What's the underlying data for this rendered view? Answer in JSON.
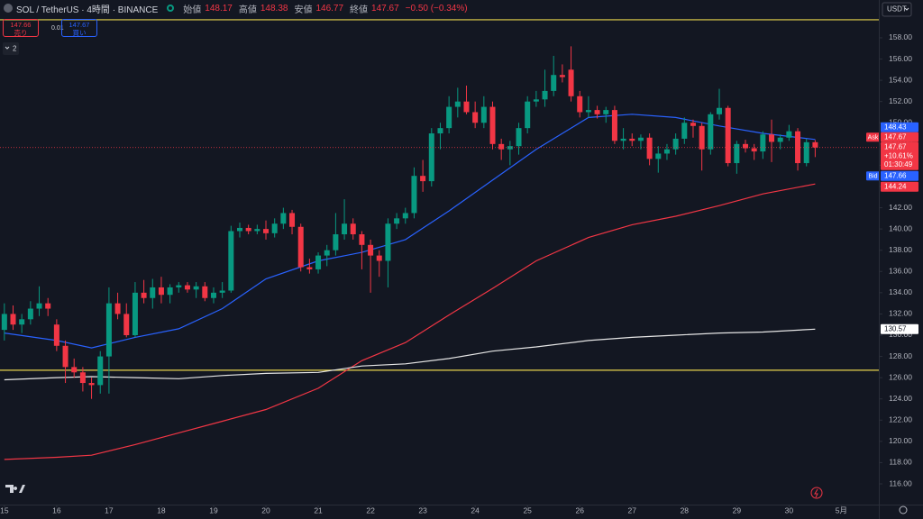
{
  "header": {
    "symbol": "SOL / TetherUS · 4時間 · BINANCE",
    "ohlc": [
      {
        "label": "始値",
        "value": 148.17
      },
      {
        "label": "高値",
        "value": 148.38
      },
      {
        "label": "安値",
        "value": 146.77
      },
      {
        "label": "終値",
        "value": 147.67
      }
    ],
    "change": "−0.50 (−0.34%)"
  },
  "trade": {
    "sell": {
      "price": 147.66,
      "label": "売り"
    },
    "spread": 0.01,
    "buy": {
      "price": 147.67,
      "label": "買い"
    }
  },
  "indicators_count": 2,
  "currency": "USDT",
  "chart_data": {
    "type": "candlestick",
    "open": [
      130.5,
      132,
      131,
      131.5,
      132.5,
      133,
      131,
      129,
      127,
      126.5,
      125.5,
      125.3,
      128,
      133,
      132,
      130,
      134,
      133.5,
      134.5,
      133.8,
      134.5,
      134.7,
      134.3,
      134.6,
      133.5,
      134,
      134.2,
      139.8,
      140.1,
      139.8,
      140,
      139.6,
      140.5,
      141.5,
      140.2,
      136.4,
      136.2,
      137.5,
      138,
      139.5,
      140.5,
      139.5,
      138.5,
      137.5,
      137,
      140.5,
      141,
      141.5,
      145,
      144.5,
      149,
      149.5,
      151.5,
      152,
      151,
      150,
      151.5,
      148,
      147.5,
      147.8,
      149.5,
      152,
      152.2,
      153,
      154.5,
      155,
      152.5,
      151,
      151.2,
      150.8,
      151.2,
      148.3,
      148.5,
      148.3,
      148.6,
      146.6,
      147.1,
      147.5,
      148.5,
      150,
      149.7,
      147.5,
      150.8,
      151.4,
      146.2,
      148,
      147.6,
      147.3,
      148.9,
      148.2,
      148.6,
      149.2,
      146.2,
      148.17
    ],
    "high": [
      133,
      132.8,
      132,
      133.2,
      134.6,
      133.5,
      131.5,
      129.5,
      127.8,
      127,
      126,
      128.5,
      134.5,
      134,
      133,
      135,
      135.2,
      135.3,
      135.5,
      134.8,
      135,
      135,
      135,
      135,
      134.5,
      135,
      140.3,
      140.6,
      140.4,
      140.4,
      140.8,
      141,
      142,
      141.8,
      140.5,
      137.2,
      137.8,
      138.5,
      141.5,
      142.8,
      141,
      139.8,
      139,
      138,
      141,
      141.5,
      142,
      145.8,
      146.5,
      149.5,
      150,
      152.5,
      153.3,
      153.5,
      152,
      152.5,
      152,
      148.5,
      148.3,
      150,
      152.5,
      153,
      155,
      156.3,
      155.5,
      157.2,
      153,
      152.5,
      151.6,
      151.5,
      151.6,
      149.5,
      149,
      148.9,
      149,
      147.8,
      148,
      149,
      150.5,
      150.3,
      150,
      151,
      153.2,
      151.6,
      148.3,
      148.4,
      148,
      149.2,
      150.3,
      148.9,
      149.8,
      149.5,
      148.5,
      148.38
    ],
    "low": [
      129.5,
      130.5,
      130.2,
      131,
      131.8,
      131.8,
      128.5,
      125.5,
      126,
      124.7,
      124,
      124.5,
      124.5,
      131.5,
      129.8,
      129.8,
      133,
      132.5,
      133,
      133,
      134,
      134,
      133.5,
      133.2,
      133,
      133.5,
      134,
      139.2,
      139.5,
      139.5,
      139,
      139.2,
      140,
      139.5,
      136,
      135.8,
      135.8,
      136.5,
      137.5,
      139,
      139,
      136.2,
      134,
      135.5,
      134.5,
      140,
      140.5,
      141,
      143.5,
      144,
      147.5,
      149,
      150.5,
      150.8,
      149.5,
      149.5,
      147.5,
      146.5,
      146,
      147,
      149,
      151.5,
      151.5,
      152.5,
      153.8,
      152,
      150.5,
      150.5,
      150.4,
      150,
      148,
      147.5,
      147.8,
      147.5,
      146,
      145.3,
      146.5,
      147,
      148,
      148.6,
      145.5,
      147,
      150.3,
      145.9,
      145.2,
      147.2,
      146.5,
      146.6,
      146.3,
      147.5,
      148.3,
      145.5,
      145.9,
      146.77
    ],
    "close": [
      132,
      131,
      131.5,
      132.5,
      133,
      132.5,
      129,
      127,
      126.5,
      125.5,
      125.3,
      128,
      133,
      132,
      130,
      134,
      133.5,
      134.5,
      133.8,
      134.5,
      134.7,
      134.3,
      134.6,
      133.5,
      134,
      134.2,
      139.8,
      140.1,
      139.8,
      140,
      139.6,
      140.5,
      141.5,
      140.2,
      136.4,
      136.2,
      137.5,
      138,
      139.5,
      140.5,
      139.5,
      138.5,
      137.5,
      137,
      140.5,
      141,
      141.5,
      145,
      144.5,
      149,
      149.5,
      151.5,
      152,
      151,
      150,
      151.5,
      148,
      147.5,
      147.8,
      149.5,
      152,
      152.2,
      153,
      154.5,
      154.3,
      152.5,
      151,
      151.2,
      150.8,
      151.2,
      148.3,
      148.5,
      148.3,
      148.6,
      146.6,
      147.1,
      147.5,
      148.5,
      150,
      149.7,
      147.5,
      150.8,
      151.4,
      146.2,
      148,
      147.6,
      147.3,
      148.9,
      148.2,
      148.6,
      149.2,
      146.2,
      148.17,
      147.67
    ],
    "up_color": "#089981",
    "down_color": "#f23645",
    "xlim": [
      -0.5,
      100.3
    ],
    "xticks": [
      {
        "value": 0,
        "label": "15"
      },
      {
        "value": 6,
        "label": "16"
      },
      {
        "value": 12,
        "label": "17"
      },
      {
        "value": 18,
        "label": "18"
      },
      {
        "value": 24,
        "label": "19"
      },
      {
        "value": 30,
        "label": "20"
      },
      {
        "value": 36,
        "label": "21"
      },
      {
        "value": 42,
        "label": "22"
      },
      {
        "value": 48,
        "label": "23"
      },
      {
        "value": 54,
        "label": "24"
      },
      {
        "value": 60,
        "label": "25"
      },
      {
        "value": 66,
        "label": "26"
      },
      {
        "value": 72,
        "label": "27"
      },
      {
        "value": 78,
        "label": "28"
      },
      {
        "value": 84,
        "label": "29"
      },
      {
        "value": 90,
        "label": "30"
      },
      {
        "value": 96,
        "label": "5月"
      }
    ],
    "ylim": [
      114.05,
      161.56
    ],
    "yticks": [
      {
        "value": 116,
        "label": "116.00"
      },
      {
        "value": 118,
        "label": "118.00"
      },
      {
        "value": 120,
        "label": "120.00"
      },
      {
        "value": 122,
        "label": "122.00"
      },
      {
        "value": 124,
        "label": "124.00"
      },
      {
        "value": 126,
        "label": "126.00"
      },
      {
        "value": 128,
        "label": "128.00"
      },
      {
        "value": 130,
        "label": "130.00"
      },
      {
        "value": 132,
        "label": "132.00"
      },
      {
        "value": 134,
        "label": "134.00"
      },
      {
        "value": 136,
        "label": "136.00"
      },
      {
        "value": 138,
        "label": "138.00"
      },
      {
        "value": 140,
        "label": "140.00"
      },
      {
        "value": 142,
        "label": "142.00"
      },
      {
        "value": 144,
        "label": "144.00"
      },
      {
        "value": 146,
        "label": "146.00"
      },
      {
        "value": 148,
        "label": "148.00"
      },
      {
        "value": 150,
        "label": "150.00"
      },
      {
        "value": 152,
        "label": "152.00"
      },
      {
        "value": 154,
        "label": "154.00"
      },
      {
        "value": 156,
        "label": "156.00"
      },
      {
        "value": 158,
        "label": "158.00"
      }
    ],
    "overlays": [
      {
        "color": "#2962ff",
        "x": [
          0,
          6,
          10,
          15,
          20,
          25,
          30,
          36,
          41,
          46,
          51,
          56,
          61,
          67,
          72,
          77,
          82,
          87,
          93
        ],
        "values": [
          130.2,
          129.5,
          128.8,
          129.8,
          130.6,
          132.5,
          135.3,
          137,
          137.8,
          139,
          141.7,
          144.6,
          147.5,
          150.5,
          150.8,
          150.5,
          149.7,
          149,
          148.43
        ]
      },
      {
        "color": "#f23645",
        "x": [
          0,
          6,
          10,
          15,
          20,
          25,
          30,
          36,
          41,
          46,
          51,
          56,
          61,
          67,
          72,
          77,
          82,
          87,
          93
        ],
        "values": [
          118.3,
          118.5,
          118.7,
          119.7,
          120.8,
          121.9,
          123,
          125,
          127.6,
          129.3,
          131.9,
          134.4,
          137,
          139.2,
          140.4,
          141.2,
          142.2,
          143.3,
          144.24
        ]
      },
      {
        "color": "#e6e6e6",
        "x": [
          0,
          6,
          10,
          15,
          20,
          25,
          30,
          36,
          41,
          46,
          51,
          56,
          61,
          67,
          72,
          77,
          82,
          87,
          93
        ],
        "values": [
          125.8,
          126,
          126.1,
          126,
          125.9,
          126.2,
          126.4,
          126.5,
          127.1,
          127.3,
          127.8,
          128.5,
          128.9,
          129.5,
          129.8,
          130,
          130.2,
          130.3,
          130.57
        ]
      }
    ],
    "hlines": {
      "color": "#e8d44d",
      "values": [
        159.7,
        126.7
      ]
    },
    "price_labels": [
      {
        "value": 148.43,
        "color": "#2962ff"
      },
      {
        "value": 147.67,
        "color": "#f23645",
        "tag": "Ask"
      },
      {
        "value": 147.67,
        "color": "#f23645",
        "change": "+10.61%",
        "countdown": "01:30:49"
      },
      {
        "value": 147.66,
        "color": "#2962ff",
        "tag": "Bid"
      },
      {
        "value": 144.24,
        "color": "#f23645"
      },
      {
        "value": 130.57,
        "color": "#ffffff"
      }
    ]
  }
}
